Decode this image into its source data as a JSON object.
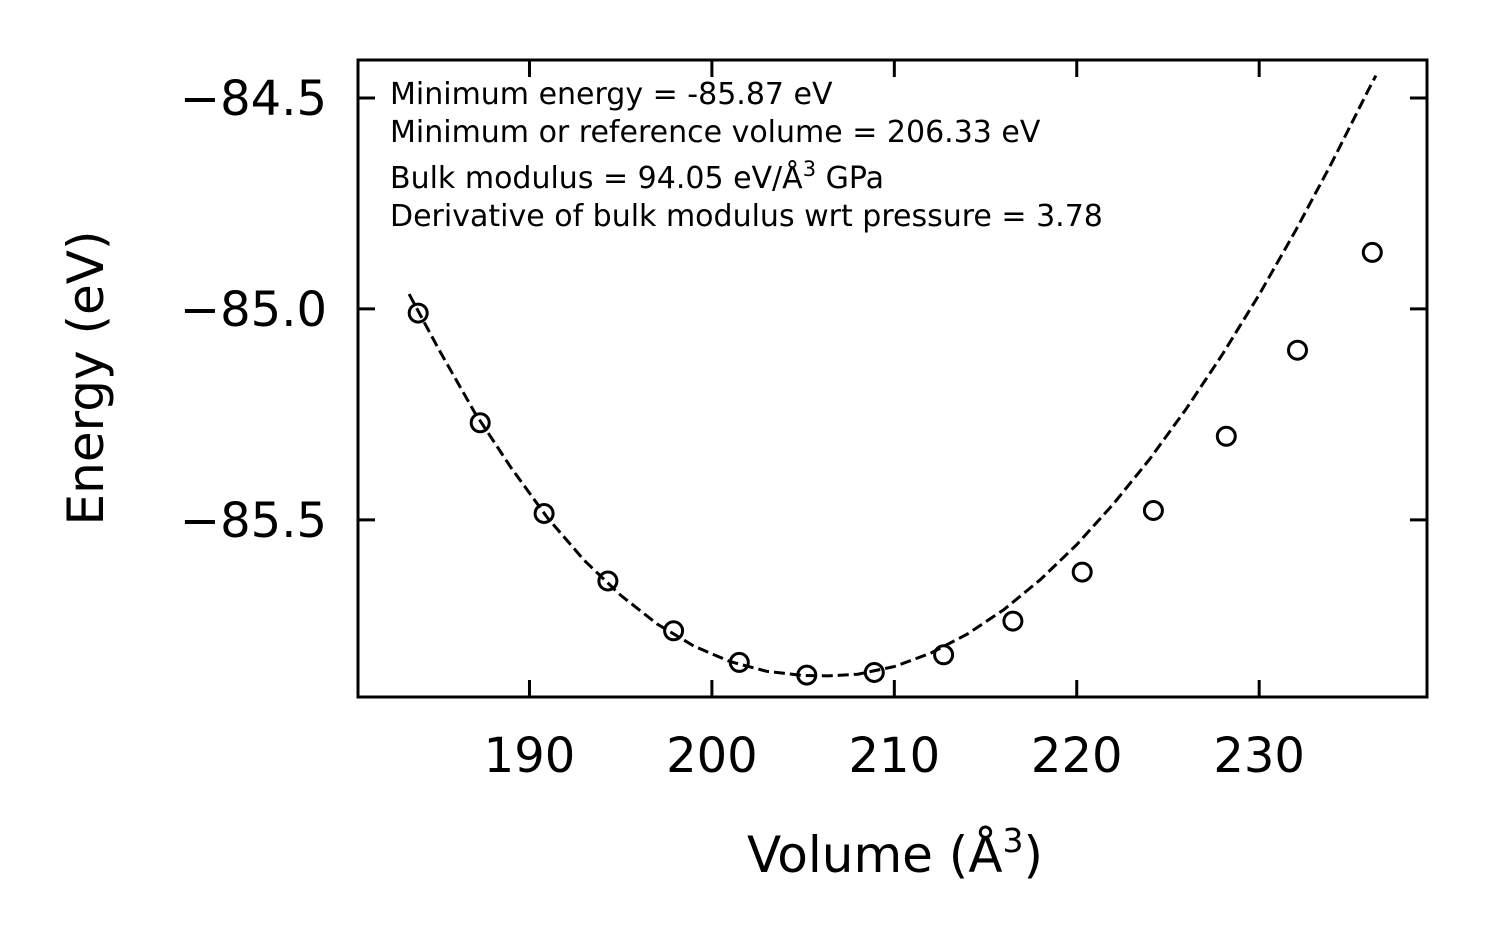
{
  "chart_data": {
    "type": "scatter",
    "title": "",
    "xlabel": "Volume (Å",
    "xlabel_sup": "3",
    "xlabel_end": ")",
    "ylabel": "Energy (eV)",
    "xlim": [
      180.6,
      239.2
    ],
    "ylim": [
      -85.92,
      -84.41
    ],
    "xticks": [
      190,
      200,
      210,
      220,
      230
    ],
    "xtick_labels": [
      "190",
      "200",
      "210",
      "220",
      "230"
    ],
    "yticks": [
      -84.5,
      -85.0,
      -85.5
    ],
    "ytick_labels": [
      "−84.5",
      "−85.0",
      "−85.5"
    ],
    "grid": false,
    "series": [
      {
        "name": "data",
        "style": "open-circle",
        "color": "#000000",
        "x": [
          183.9,
          187.3,
          190.8,
          194.3,
          197.9,
          201.5,
          205.2,
          208.9,
          212.7,
          216.5,
          220.3,
          224.2,
          228.2,
          232.1,
          236.2
        ],
        "y": [
          -85.01,
          -85.27,
          -85.485,
          -85.645,
          -85.763,
          -85.838,
          -85.868,
          -85.862,
          -85.82,
          -85.74,
          -85.624,
          -85.478,
          -85.302,
          -85.098,
          -84.866
        ]
      },
      {
        "name": "fit",
        "style": "dashed-line",
        "color": "#000000",
        "x": [
          183.4,
          185,
          187,
          189,
          191,
          193,
          195,
          197,
          199,
          201,
          203,
          205,
          206.33,
          208,
          210,
          212,
          214,
          216,
          218,
          220,
          222,
          224,
          226,
          228,
          230,
          232,
          234,
          236,
          236.4
        ],
        "y": [
          -84.965,
          -85.094,
          -85.246,
          -85.377,
          -85.496,
          -85.596,
          -85.679,
          -85.747,
          -85.799,
          -85.836,
          -85.859,
          -85.869,
          -85.87,
          -85.866,
          -85.848,
          -85.816,
          -85.771,
          -85.713,
          -85.642,
          -85.559,
          -85.463,
          -85.356,
          -85.237,
          -85.107,
          -84.966,
          -84.814,
          -84.652,
          -84.48,
          -84.447
        ]
      }
    ],
    "annotations": [
      "Minimum energy = -85.87 eV",
      "Minimum or reference volume = 206.33 eV",
      "Bulk modulus = 94.05 eV/Å",
      "3",
      " GPa",
      "Derivative of bulk modulus wrt pressure = 3.78"
    ]
  }
}
